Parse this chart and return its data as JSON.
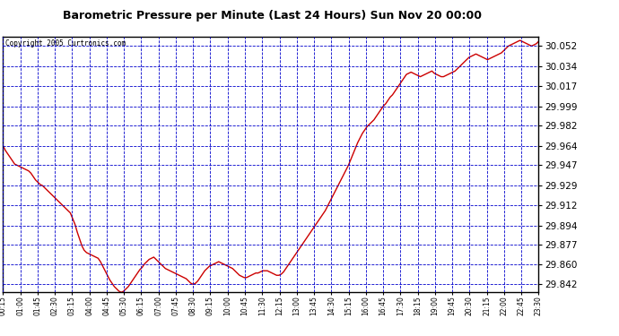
{
  "title": "Barometric Pressure per Minute (Last 24 Hours) Sun Nov 20 00:00",
  "copyright": "Copyright 2005 Curtronics.com",
  "background_color": "#ffffff",
  "plot_background": "#ffffff",
  "line_color": "#cc0000",
  "grid_color": "#0000cc",
  "yticks": [
    29.842,
    29.86,
    29.877,
    29.894,
    29.912,
    29.929,
    29.947,
    29.964,
    29.982,
    29.999,
    30.017,
    30.034,
    30.052
  ],
  "ylim": [
    29.835,
    30.06
  ],
  "xlim": [
    0,
    231
  ],
  "xtick_labels": [
    "00:15",
    "01:00",
    "01:45",
    "02:30",
    "03:15",
    "04:00",
    "04:45",
    "05:30",
    "06:15",
    "07:00",
    "07:45",
    "08:30",
    "09:15",
    "10:00",
    "10:45",
    "11:30",
    "12:15",
    "13:00",
    "13:45",
    "14:30",
    "15:15",
    "16:00",
    "16:45",
    "17:30",
    "18:15",
    "19:00",
    "19:45",
    "20:30",
    "21:15",
    "22:00",
    "22:45",
    "23:30"
  ],
  "data_y": [
    29.964,
    29.96,
    29.957,
    29.954,
    29.951,
    29.948,
    29.947,
    29.946,
    29.945,
    29.944,
    29.943,
    29.942,
    29.94,
    29.937,
    29.934,
    29.932,
    29.93,
    29.929,
    29.927,
    29.925,
    29.923,
    29.921,
    29.919,
    29.917,
    29.915,
    29.913,
    29.911,
    29.909,
    29.907,
    29.905,
    29.9,
    29.895,
    29.888,
    29.882,
    29.876,
    29.872,
    29.87,
    29.869,
    29.868,
    29.867,
    29.866,
    29.865,
    29.862,
    29.858,
    29.854,
    29.85,
    29.846,
    29.843,
    29.84,
    29.838,
    29.836,
    29.835,
    29.836,
    29.838,
    29.84,
    29.843,
    29.846,
    29.849,
    29.852,
    29.855,
    29.857,
    29.86,
    29.862,
    29.864,
    29.865,
    29.866,
    29.864,
    29.862,
    29.86,
    29.858,
    29.856,
    29.855,
    29.854,
    29.853,
    29.852,
    29.851,
    29.85,
    29.849,
    29.848,
    29.847,
    29.845,
    29.843,
    29.842,
    29.843,
    29.845,
    29.848,
    29.851,
    29.854,
    29.856,
    29.858,
    29.859,
    29.86,
    29.861,
    29.862,
    29.861,
    29.86,
    29.859,
    29.858,
    29.857,
    29.856,
    29.854,
    29.852,
    29.85,
    29.849,
    29.848,
    29.848,
    29.849,
    29.85,
    29.851,
    29.852,
    29.852,
    29.853,
    29.854,
    29.854,
    29.854,
    29.853,
    29.852,
    29.851,
    29.85,
    29.85,
    29.851,
    29.853,
    29.856,
    29.859,
    29.862,
    29.865,
    29.868,
    29.871,
    29.874,
    29.877,
    29.88,
    29.883,
    29.886,
    29.889,
    29.892,
    29.895,
    29.898,
    29.901,
    29.904,
    29.907,
    29.911,
    29.915,
    29.919,
    29.923,
    29.927,
    29.931,
    29.935,
    29.939,
    29.943,
    29.947,
    29.952,
    29.957,
    29.962,
    29.967,
    29.971,
    29.975,
    29.978,
    29.981,
    29.983,
    29.985,
    29.987,
    29.99,
    29.993,
    29.996,
    29.999,
    30.001,
    30.004,
    30.007,
    30.009,
    30.012,
    30.015,
    30.018,
    30.021,
    30.024,
    30.027,
    30.028,
    30.029,
    30.028,
    30.027,
    30.026,
    30.025,
    30.026,
    30.027,
    30.028,
    30.029,
    30.03,
    30.028,
    30.027,
    30.026,
    30.025,
    30.025,
    30.026,
    30.027,
    30.028,
    30.029,
    30.03,
    30.032,
    30.034,
    30.036,
    30.038,
    30.04,
    30.042,
    30.043,
    30.044,
    30.045,
    30.044,
    30.043,
    30.042,
    30.041,
    30.04,
    30.041,
    30.042,
    30.043,
    30.044,
    30.045,
    30.046,
    30.048,
    30.05,
    30.052,
    30.053,
    30.054,
    30.055,
    30.056,
    30.057,
    30.056,
    30.055,
    30.054,
    30.053,
    30.052,
    30.053,
    30.054,
    30.056
  ]
}
